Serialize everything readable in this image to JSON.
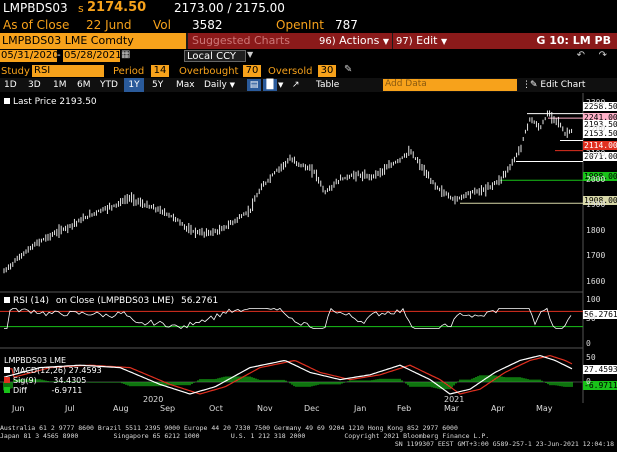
{
  "header": {
    "ticker": "LMPBDS03",
    "last_prefix": "s",
    "last_price": "2174.50",
    "bid_ask": "2173.00 / 2175.00",
    "as_of_label": "As of Close",
    "as_of_date": "22 Jund",
    "vol_label": "Vol",
    "vol_value": "3582",
    "openint_label": "OpenInt",
    "openint_value": "787"
  },
  "toolbar": {
    "security": "LMPBDS03 LME Comdty",
    "suggested_charts": "Suggested Charts",
    "actions_num": "96)",
    "actions_label": "Actions",
    "edit_num": "97)",
    "edit_label": "Edit",
    "right_label": "G 10: LM PB"
  },
  "range_row": {
    "start_date": "05/31/2020",
    "end_date": "05/28/2021",
    "currency": "Local CCY"
  },
  "study_row": {
    "study_label": "Study",
    "study_value": "RSI",
    "period_label": "Period",
    "period_value": "14",
    "overbought_label": "Overbought",
    "overbought_value": "70",
    "oversold_label": "Oversold",
    "oversold_value": "30"
  },
  "period_row": {
    "periods": [
      "1D",
      "3D",
      "1M",
      "6M",
      "YTD",
      "1Y",
      "5Y",
      "Max"
    ],
    "selected_period": "1Y",
    "frequency": "Daily",
    "table_label": "Table",
    "add_data_placeholder": "Add Data",
    "edit_chart_label": "Edit Chart"
  },
  "price_panel": {
    "legend": "Last Price 2193.50",
    "right_labels": [
      {
        "text": "2258.50",
        "bg": "#ffffff",
        "fg": "#000000",
        "value": 2258.5
      },
      {
        "text": "2241.00",
        "bg": "#ffb0c8",
        "fg": "#000000",
        "value": 2241
      },
      {
        "text": "2193.50",
        "bg": "#ffffff",
        "fg": "#000000",
        "value": 2193.5
      },
      {
        "text": "2153.50",
        "bg": "#ffffff",
        "fg": "#000000",
        "value": 2153.5
      },
      {
        "text": "2114.00",
        "bg": "#e03020",
        "fg": "#ffffff",
        "value": 2114
      },
      {
        "text": "2071.00",
        "bg": "#ffffff",
        "fg": "#000000",
        "value": 2071
      },
      {
        "text": "1998.00",
        "bg": "#19c319",
        "fg": "#000000",
        "value": 1998
      },
      {
        "text": "1908.00",
        "bg": "#d8d8a8",
        "fg": "#000000",
        "value": 1908
      }
    ],
    "ticks": [
      "2300",
      "2200",
      "2100",
      "2000",
      "1900",
      "1800",
      "1700",
      "1600"
    ]
  },
  "rsi_panel": {
    "legend_label": "RSI (14)",
    "legend_on": "on Close (LMPBDS03 LME)",
    "legend_value": "56.2761",
    "value_label": "56.2761",
    "ticks": [
      "100",
      "50",
      "0"
    ]
  },
  "macd_panel": {
    "title": "LMPBDS03 LME",
    "macd_label": "MACD(12,26)",
    "macd_value": "27.4593",
    "sig_label": "Sig(9)",
    "sig_value": "34.4305",
    "diff_label": "Diff",
    "diff_value": "-6.9711",
    "value_labels": [
      "27.4593",
      "-6.9711"
    ],
    "ticks": [
      "50",
      "0"
    ]
  },
  "x_axis": {
    "months": [
      "Jun",
      "Jul",
      "Aug",
      "Sep",
      "Oct",
      "Nov",
      "Dec",
      "Jan",
      "Feb",
      "Mar",
      "Apr",
      "May"
    ],
    "years": [
      "2020",
      "2021"
    ]
  },
  "footer": {
    "line1": "Australia 61 2 9777 8600 Brazil 5511 2395 9000 Europe 44 20 7330 7500 Germany 49 69 9204 1210 Hong Kong 852 2977 6000",
    "line2": "Japan 81 3 4565 8900         Singapore 65 6212 1000        U.S. 1 212 318 2000          Copyright 2021 Bloomberg Finance L.P.",
    "line3": "SN 1199307 EEST GMT+3:00 G589-257-1 23-Jun-2021 12:04:18"
  },
  "colors": {
    "orange": "#f7a21b",
    "red_bar": "#8b1a1a",
    "price_line": "#ffffff",
    "rsi_line": "#ffffff",
    "overbought_line": "#e03020",
    "oversold_line": "#19c319",
    "macd_line": "#ffffff",
    "sig_line": "#e03020",
    "diff_hist": "#19c319"
  }
}
